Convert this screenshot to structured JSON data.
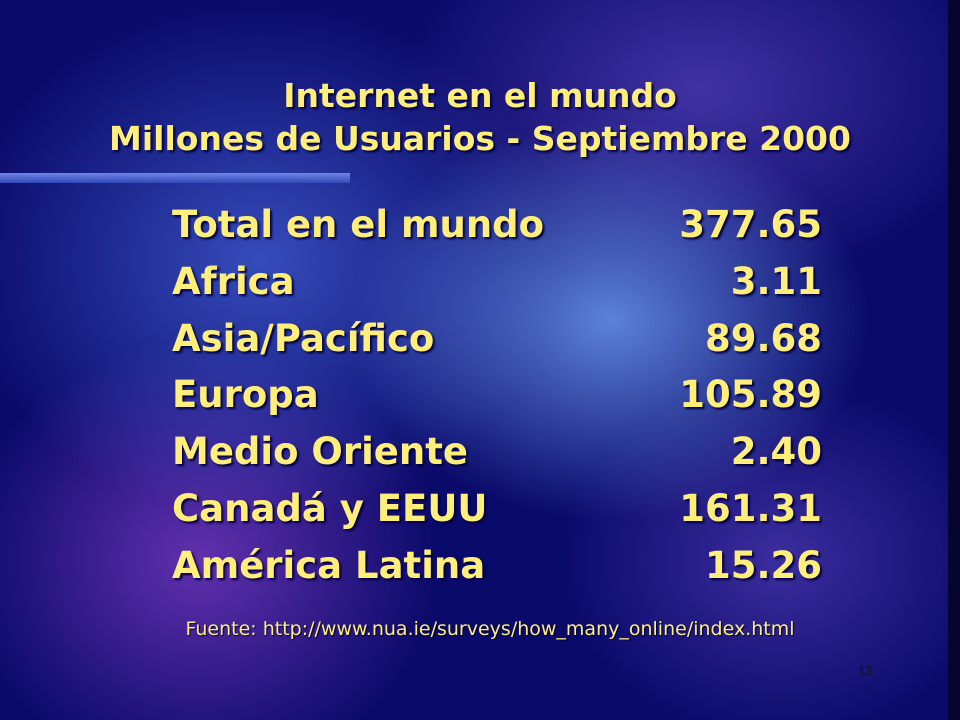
{
  "slide": {
    "title": [
      "Internet en el mundo",
      "Millones de Usuarios - Septiembre 2000"
    ],
    "table": {
      "rows": [
        [
          "Total en el mundo",
          "377.65"
        ],
        [
          "Africa",
          "3.11"
        ],
        [
          "Asia/Pacífico",
          "89.68"
        ],
        [
          "Europa",
          "105.89"
        ],
        [
          "Medio Oriente",
          "2.40"
        ],
        [
          "Canadá y EEUU",
          "161.31"
        ],
        [
          "América Latina",
          "15.26"
        ]
      ]
    },
    "source": "Fuente: http://www.nua.ie/surveys/how_many_online/index.html",
    "page_number": "13"
  }
}
